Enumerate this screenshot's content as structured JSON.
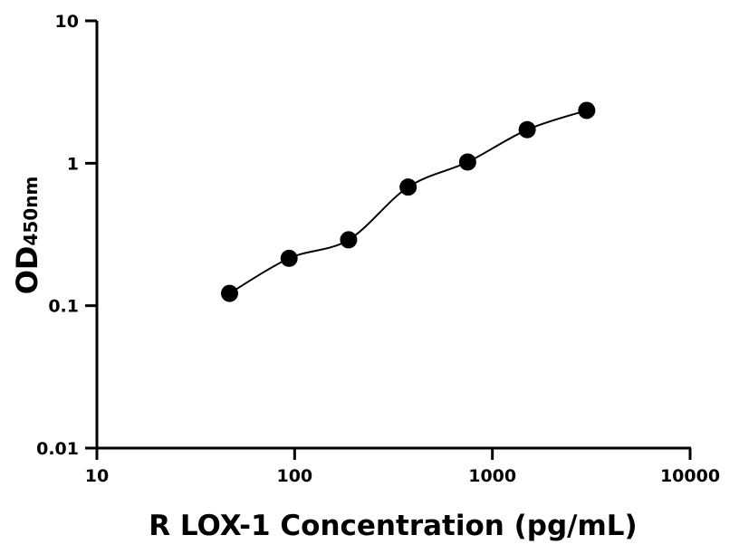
{
  "chart_data": {
    "type": "scatter",
    "xlabel": "R LOX-1 Concentration (pg/mL)",
    "ylabel_main": "OD",
    "ylabel_sub": "450nm",
    "xscale": "log",
    "yscale": "log",
    "xlim": [
      10,
      10000
    ],
    "ylim": [
      0.01,
      10
    ],
    "x_ticks": [
      10,
      100,
      1000,
      10000
    ],
    "x_tick_labels": [
      "10",
      "100",
      "1000",
      "10000"
    ],
    "y_ticks": [
      0.01,
      0.1,
      1,
      10
    ],
    "y_tick_labels": [
      "0.01",
      "0.1",
      "1",
      "10"
    ],
    "grid": false,
    "series": [
      {
        "x": [
          46.875,
          93.75,
          187.5,
          375,
          750,
          1500,
          3000
        ],
        "y": [
          0.122,
          0.215,
          0.29,
          0.68,
          1.02,
          1.72,
          2.35
        ],
        "marker": "circle",
        "color": "#000000",
        "fit_curve": true
      }
    ]
  }
}
